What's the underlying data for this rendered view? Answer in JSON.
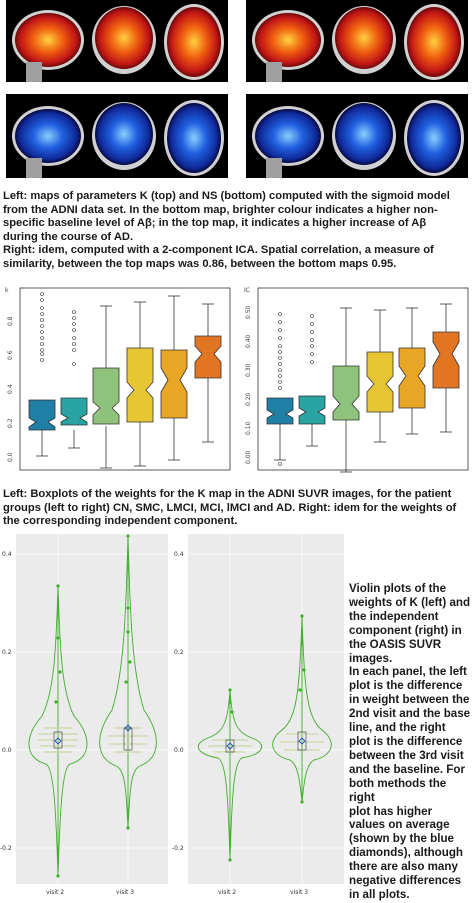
{
  "brain_figures": {
    "panels": [
      {
        "name": "left-top-map",
        "scheme": "warm"
      },
      {
        "name": "right-top-map",
        "scheme": "warm"
      },
      {
        "name": "left-bottom-map",
        "scheme": "cool"
      },
      {
        "name": "right-bottom-map",
        "scheme": "cool"
      }
    ],
    "colors": {
      "warm_outer": "#b01818",
      "warm_mid": "#e84a10",
      "warm_core": "#ffb020",
      "cool_outer": "#0a1a6a",
      "cool_mid": "#1a5ad8",
      "cool_core": "#7ac8ff"
    }
  },
  "caption1": {
    "line1": "Left: maps of parameters K (top) and NS (bottom) computed with the sigmoid model",
    "line2": "from the ADNI data set. In the bottom map, brighter colour indicates a higher non-",
    "line3": "specific baseline level of Aβ; in the top map, it indicates a higher increase of Aβ",
    "line4": "during the course of AD.",
    "line5": "Right: idem, computed with a 2-component ICA. Spatial correlation, a measure of",
    "line6": "similarity, between the top maps was 0.86, between the bottom maps 0.95."
  },
  "boxplots": {
    "left": {
      "corner_label": "k",
      "y_ticks": [
        "0.0",
        "0.2",
        "0.4",
        "0.6",
        "0.8"
      ]
    },
    "right": {
      "corner_label": "IC",
      "y_ticks": [
        "0.00",
        "0.10",
        "0.20",
        "0.30",
        "0.40",
        "0.50"
      ]
    },
    "colors": [
      "#1f7fa5",
      "#2aa3a3",
      "#8fc27a",
      "#e8c532",
      "#e8a526",
      "#e27522"
    ]
  },
  "caption2": {
    "line1": "Left: Boxplots of the weights for the K map in the ADNI SUVR images, for the patient",
    "line2": "groups (left to right) CN, SMC, LMCI, MCI, lMCI and AD. Right: idem for the weights of",
    "line3": "the corresponding independent component."
  },
  "violins": {
    "left": {
      "y_ticks": [
        "0.4",
        "0.2",
        "0.0",
        "-0.2"
      ],
      "x_ticks": [
        "visit 2",
        "visit 3"
      ]
    },
    "right": {
      "y_ticks": [
        "0.4",
        "0.2",
        "0.0",
        "-0.2"
      ],
      "x_ticks": [
        "visit 2",
        "visit 3"
      ]
    },
    "colors": {
      "violin": "#3fae2a",
      "mean_diamond": "#2050c8",
      "panel_bg": "#ebebeb"
    }
  },
  "side_caption": {
    "l1": "Violin plots of the",
    "l2": "weights of K (left) and",
    "l3": "the independent",
    "l4": "component (right) in",
    "l5": "the OASIS SUVR",
    "l6": "images.",
    "l7": "In each panel, the left",
    "l8": "plot is the difference",
    "l9": "in weight between the",
    "l10": "2nd visit and the base",
    "l11": "line, and the right",
    "l12": "plot is the difference",
    "l13": "between the 3rd visit",
    "l14": "and the baseline. For",
    "l15": "both methods the right",
    "l16": "plot has higher",
    "l17": "values on average",
    "l18": "(shown by the blue",
    "l19": "diamonds), although",
    "l20": "there are also many",
    "l21": "negative differences",
    "l22": "in all plots."
  }
}
